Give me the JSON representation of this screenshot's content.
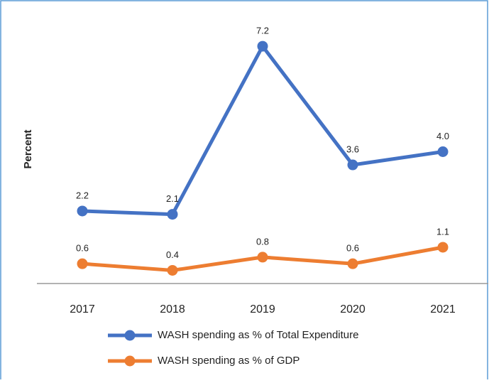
{
  "chart_data": {
    "type": "line",
    "y_label": "Percent",
    "categories": [
      "2017",
      "2018",
      "2019",
      "2020",
      "2021"
    ],
    "series": [
      {
        "name": "WASH spending as % of Total Expenditure",
        "color": "#4472c4",
        "values": [
          2.2,
          2.1,
          7.2,
          3.6,
          4.0
        ],
        "value_labels": [
          "2.2",
          "2.1",
          "7.2",
          "3.6",
          "4.0"
        ]
      },
      {
        "name": "WASH spending as % of GDP",
        "color": "#ed7d31",
        "values": [
          0.6,
          0.4,
          0.8,
          0.6,
          1.1
        ],
        "value_labels": [
          "0.6",
          "0.4",
          "0.8",
          "0.6",
          "1.1"
        ]
      }
    ],
    "ylim": [
      0,
      8
    ]
  }
}
